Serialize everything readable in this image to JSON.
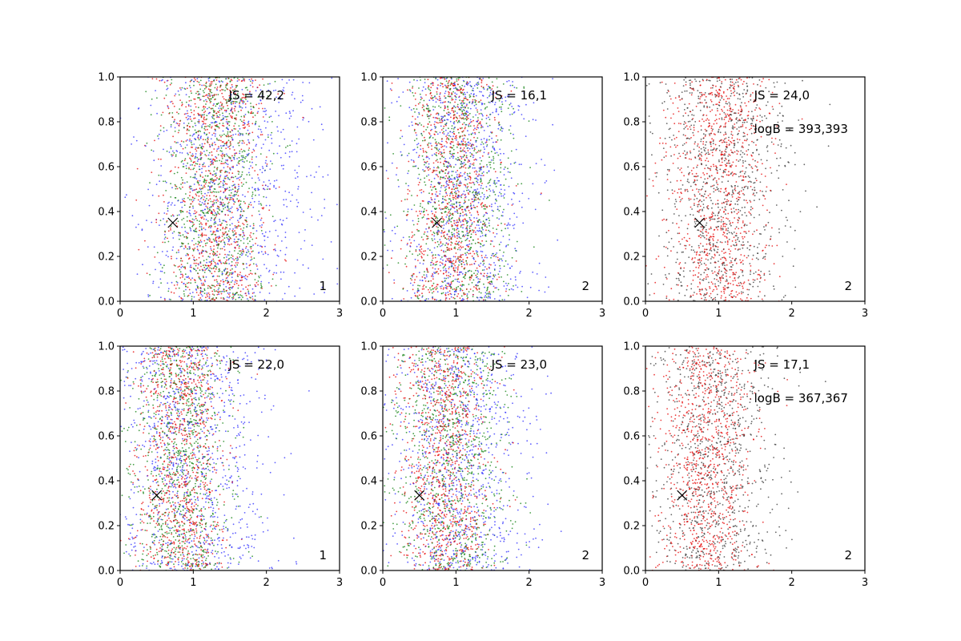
{
  "chart_data": [
    {
      "type": "scatter",
      "panel": "top-left",
      "xlim": [
        0,
        3
      ],
      "ylim": [
        0,
        1
      ],
      "xticks": [
        "0",
        "1",
        "2",
        "3"
      ],
      "yticks": [
        "0.0",
        "0.2",
        "0.4",
        "0.6",
        "0.8",
        "1.0"
      ],
      "series": [
        {
          "name": "blue",
          "color": "#2b2bff",
          "center_x": 1.5,
          "spread_x": 0.6
        },
        {
          "name": "green",
          "color": "#0a7d0a",
          "center_x": 1.3,
          "spread_x": 0.35
        },
        {
          "name": "red",
          "color": "#e60000",
          "center_x": 1.3,
          "spread_x": 0.35
        }
      ],
      "marker": {
        "x": 0.72,
        "y": 0.35,
        "symbol": "x"
      },
      "annotations": [
        "JS = 42,2"
      ],
      "index_label": "1"
    },
    {
      "type": "scatter",
      "panel": "top-middle",
      "xlim": [
        0,
        3
      ],
      "ylim": [
        0,
        1
      ],
      "xticks": [
        "0",
        "1",
        "2",
        "3"
      ],
      "yticks": [
        "0.0",
        "0.2",
        "0.4",
        "0.6",
        "0.8",
        "1.0"
      ],
      "series": [
        {
          "name": "blue",
          "color": "#2b2bff",
          "center_x": 1.1,
          "spread_x": 0.45
        },
        {
          "name": "green",
          "color": "#0a7d0a",
          "center_x": 1.05,
          "spread_x": 0.38
        },
        {
          "name": "red",
          "color": "#e60000",
          "center_x": 0.95,
          "spread_x": 0.3
        }
      ],
      "marker": {
        "x": 0.74,
        "y": 0.35,
        "symbol": "x"
      },
      "annotations": [
        "JS = 16,1"
      ],
      "index_label": "2"
    },
    {
      "type": "scatter",
      "panel": "top-right",
      "xlim": [
        0,
        3
      ],
      "ylim": [
        0,
        1
      ],
      "xticks": [
        "0",
        "1",
        "2",
        "3"
      ],
      "yticks": [
        "0.0",
        "0.2",
        "0.4",
        "0.6",
        "0.8",
        "1.0"
      ],
      "series": [
        {
          "name": "black",
          "color": "#333333",
          "center_x": 1.05,
          "spread_x": 0.45
        },
        {
          "name": "red",
          "color": "#e60000",
          "center_x": 1.0,
          "spread_x": 0.35
        }
      ],
      "marker": {
        "x": 0.74,
        "y": 0.35,
        "symbol": "x"
      },
      "annotations": [
        "JS = 24,0",
        "logB = 393,393"
      ],
      "index_label": "2"
    },
    {
      "type": "scatter",
      "panel": "bottom-left",
      "xlim": [
        0,
        3
      ],
      "ylim": [
        0,
        1
      ],
      "xticks": [
        "0",
        "1",
        "2",
        "3"
      ],
      "yticks": [
        "0.0",
        "0.2",
        "0.4",
        "0.6",
        "0.8",
        "1.0"
      ],
      "series": [
        {
          "name": "blue",
          "color": "#2b2bff",
          "center_x": 1.0,
          "spread_x": 0.5
        },
        {
          "name": "green",
          "color": "#0a7d0a",
          "center_x": 0.85,
          "spread_x": 0.33
        },
        {
          "name": "red",
          "color": "#e60000",
          "center_x": 0.85,
          "spread_x": 0.3
        }
      ],
      "marker": {
        "x": 0.5,
        "y": 0.335,
        "symbol": "x"
      },
      "annotations": [
        "JS = 22,0"
      ],
      "index_label": "1"
    },
    {
      "type": "scatter",
      "panel": "bottom-middle",
      "xlim": [
        0,
        3
      ],
      "ylim": [
        0,
        1
      ],
      "xticks": [
        "0",
        "1",
        "2",
        "3"
      ],
      "yticks": [
        "0.0",
        "0.2",
        "0.4",
        "0.6",
        "0.8",
        "1.0"
      ],
      "series": [
        {
          "name": "blue",
          "color": "#2b2bff",
          "center_x": 1.05,
          "spread_x": 0.45
        },
        {
          "name": "green",
          "color": "#0a7d0a",
          "center_x": 0.95,
          "spread_x": 0.38
        },
        {
          "name": "red",
          "color": "#e60000",
          "center_x": 0.85,
          "spread_x": 0.3
        }
      ],
      "marker": {
        "x": 0.5,
        "y": 0.335,
        "symbol": "x"
      },
      "annotations": [
        "JS = 23,0"
      ],
      "index_label": "2"
    },
    {
      "type": "scatter",
      "panel": "bottom-right",
      "xlim": [
        0,
        3
      ],
      "ylim": [
        0,
        1
      ],
      "xticks": [
        "0",
        "1",
        "2",
        "3"
      ],
      "yticks": [
        "0.0",
        "0.2",
        "0.4",
        "0.6",
        "0.8",
        "1.0"
      ],
      "series": [
        {
          "name": "black",
          "color": "#333333",
          "center_x": 0.95,
          "spread_x": 0.42
        },
        {
          "name": "red",
          "color": "#e60000",
          "center_x": 0.85,
          "spread_x": 0.32
        }
      ],
      "marker": {
        "x": 0.5,
        "y": 0.335,
        "symbol": "x"
      },
      "annotations": [
        "JS = 17,1",
        "logB = 367,367"
      ],
      "index_label": "2"
    }
  ]
}
